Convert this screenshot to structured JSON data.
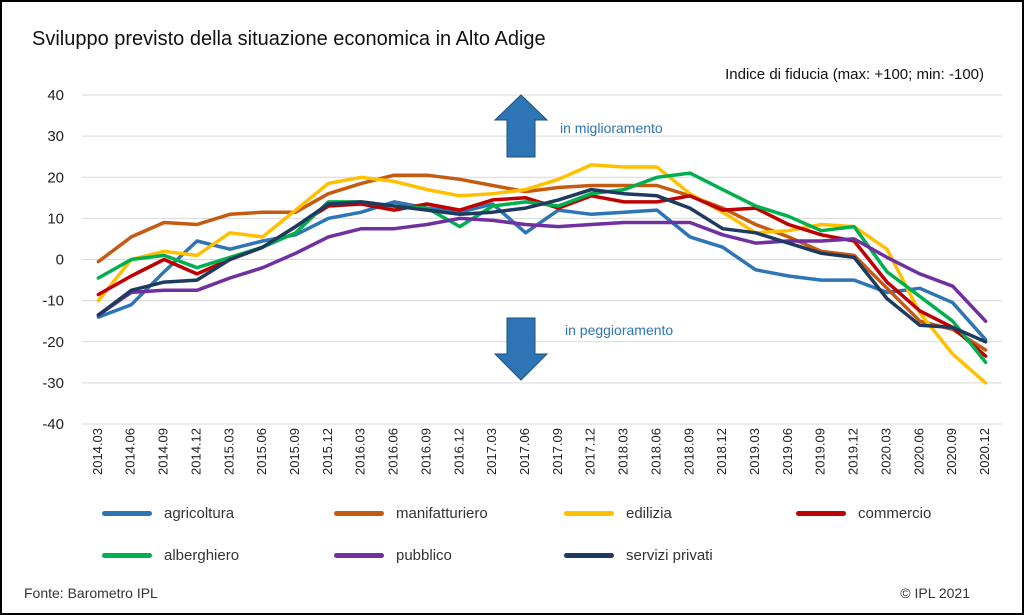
{
  "title": "Sviluppo previsto della situazione economica in Alto Adige",
  "subtitle": "Indice di fiducia (max: +100; min: -100)",
  "source": "Fonte: Barometro IPL",
  "copyright": "© IPL 2021",
  "chart_data": {
    "type": "line",
    "ylim": [
      -40,
      40
    ],
    "yticks": [
      40,
      30,
      20,
      10,
      0,
      -10,
      -20,
      -30,
      -40
    ],
    "grid": true,
    "legend_position": "bottom",
    "annotations": {
      "up": "in miglioramento",
      "down": "in peggioramento",
      "arrow_color": "#2E75B6"
    },
    "x": [
      "2014.03",
      "2014.06",
      "2014.09",
      "2014.12",
      "2015.03",
      "2015.06",
      "2015.09",
      "2015.12",
      "2016.03",
      "2016.06",
      "2016.09",
      "2016.12",
      "2017.03",
      "2017.06",
      "2017.09",
      "2017.12",
      "2018.03",
      "2018.06",
      "2018.09",
      "2018.12",
      "2019.03",
      "2019.06",
      "2019.09",
      "2019.12",
      "2020.03",
      "2020.06",
      "2020.09",
      "2020.12"
    ],
    "series": [
      {
        "name": "agricoltura",
        "color": "#2E75B6",
        "values": [
          -14,
          -11,
          -3,
          4.5,
          2.5,
          4.5,
          6,
          10,
          11.5,
          14,
          12.5,
          11.5,
          13.5,
          6.5,
          12,
          11,
          11.5,
          12,
          5.5,
          3,
          -2.5,
          -4,
          -5,
          -5,
          -8,
          -7,
          -10.5,
          -19.5
        ]
      },
      {
        "name": "manifatturiero",
        "color": "#C55A11",
        "values": [
          -0.5,
          5.5,
          9,
          8.5,
          11,
          11.5,
          11.5,
          16,
          18.5,
          20.5,
          20.5,
          19.5,
          18,
          16.5,
          17.5,
          18,
          18,
          18,
          15.5,
          12.5,
          8.5,
          5.5,
          2,
          1,
          -7,
          -15,
          -17,
          -22
        ]
      },
      {
        "name": "edilizia",
        "color": "#FFC000",
        "values": [
          -10,
          0,
          2,
          1,
          6.5,
          5.5,
          12,
          18.5,
          20,
          19,
          17,
          15.5,
          16,
          17,
          19.5,
          23,
          22.5,
          22.5,
          16,
          11.5,
          6.5,
          7,
          8.5,
          8,
          2.5,
          -13,
          -23,
          -30
        ]
      },
      {
        "name": "commercio",
        "color": "#C00000",
        "values": [
          -8.5,
          -4,
          0,
          -3.5,
          0,
          3,
          8,
          13,
          13.5,
          12,
          13.5,
          12,
          14.5,
          15,
          12.5,
          15.5,
          14,
          14,
          15.5,
          12,
          12.5,
          8.5,
          6,
          4.5,
          -5.5,
          -12.5,
          -16.5,
          -23.5
        ]
      },
      {
        "name": "alberghiero",
        "color": "#00B050",
        "values": [
          -4.5,
          0,
          1,
          -2,
          0.5,
          3,
          6.5,
          14,
          14,
          13,
          12.5,
          8,
          13,
          14,
          13,
          16,
          17,
          20,
          21,
          17,
          13,
          10.5,
          7,
          8,
          -3,
          -9,
          -15,
          -25
        ]
      },
      {
        "name": "pubblico",
        "color": "#7030A0",
        "values": [
          -13.5,
          -8,
          -7.5,
          -7.5,
          -4.5,
          -2,
          1.5,
          5.5,
          7.5,
          7.5,
          8.5,
          10,
          9.5,
          8.5,
          8,
          8.5,
          9,
          9,
          9,
          6,
          4,
          4.5,
          4.5,
          5,
          0.5,
          -3.5,
          -6.5,
          -15
        ]
      },
      {
        "name": "servizi privati",
        "color": "#1F3A5F",
        "values": [
          -13.5,
          -7.5,
          -5.5,
          -5,
          0,
          3,
          8,
          13.5,
          14,
          13,
          12,
          11,
          11.5,
          12.5,
          14.5,
          17,
          16,
          15.5,
          12.5,
          7.5,
          6.5,
          4,
          1.5,
          0.5,
          -9.5,
          -16,
          -16.5,
          -20
        ]
      }
    ]
  }
}
